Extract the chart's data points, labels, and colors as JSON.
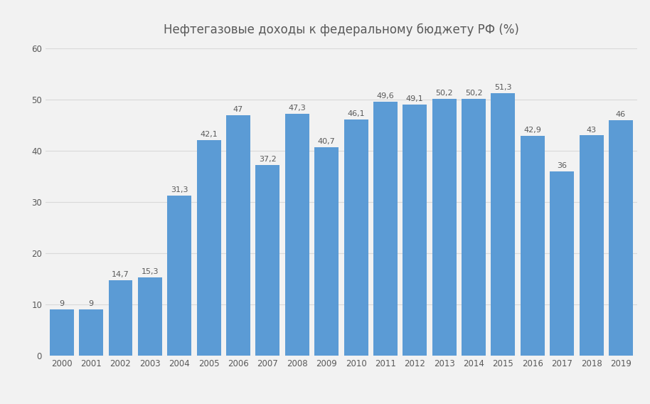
{
  "title": "Нефтегазовые доходы к федеральному бюджету РФ (%)",
  "years": [
    2000,
    2001,
    2002,
    2003,
    2004,
    2005,
    2006,
    2007,
    2008,
    2009,
    2010,
    2011,
    2012,
    2013,
    2014,
    2015,
    2016,
    2017,
    2018,
    2019
  ],
  "values": [
    9,
    9,
    14.7,
    15.3,
    31.3,
    42.1,
    47,
    37.2,
    47.3,
    40.7,
    46.1,
    49.6,
    49.1,
    50.2,
    50.2,
    51.3,
    42.9,
    36,
    43,
    46
  ],
  "bar_color": "#5b9bd5",
  "background_color": "#f2f2f2",
  "grid_color": "#d9d9d9",
  "text_color": "#595959",
  "ylim": [
    0,
    60
  ],
  "yticks": [
    0,
    10,
    20,
    30,
    40,
    50,
    60
  ],
  "title_fontsize": 12,
  "label_fontsize": 8,
  "tick_fontsize": 8.5,
  "bar_width": 0.82
}
